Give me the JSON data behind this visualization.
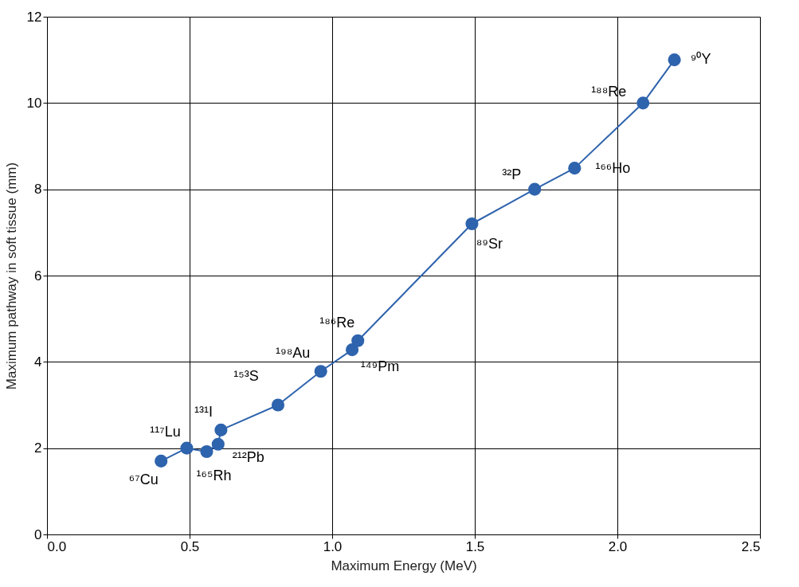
{
  "chart_data": {
    "type": "line",
    "xlabel": "Maximum Energy (MeV)",
    "ylabel": "Maximum pathway in soft tissue (mm)",
    "x": [
      0.4,
      0.49,
      0.56,
      0.6,
      0.61,
      0.81,
      0.96,
      1.07,
      1.09,
      1.49,
      1.71,
      1.85,
      2.09,
      2.2
    ],
    "series": [
      {
        "color": "#2e63ad",
        "values": [
          1.7,
          2.0,
          1.92,
          2.09,
          2.42,
          3.0,
          3.78,
          4.28,
          4.49,
          7.2,
          8.0,
          8.49,
          10.0,
          11.0
        ]
      }
    ],
    "xlim": [
      0,
      2.5
    ],
    "xticks": [
      {
        "value": 0,
        "label": "0.0"
      },
      0.5,
      {
        "value": 1,
        "label": "1.0"
      },
      1.5,
      {
        "value": 2,
        "label": "2.0"
      },
      2.5
    ],
    "ylim": [
      0,
      12
    ],
    "yticks": [
      0,
      2,
      4,
      6,
      8,
      10,
      12
    ],
    "grid": true,
    "marker": "circle",
    "line_style": "solid",
    "annotations": [
      {
        "text": "⁶⁷Cu",
        "x": 0.4,
        "y": 1.7
      },
      {
        "text": "¹¹⁷Lu",
        "x": 0.49,
        "y": 2.0
      },
      {
        "text": "¹⁶⁵Rh",
        "x": 0.56,
        "y": 1.92
      },
      {
        "text": "²¹²Pb",
        "x": 0.6,
        "y": 2.09
      },
      {
        "text": "¹³¹I",
        "x": 0.61,
        "y": 2.42
      },
      {
        "text": "¹⁵³S",
        "x": 0.81,
        "y": 3.0
      },
      {
        "text": "¹⁹⁸Au",
        "x": 0.96,
        "y": 3.78
      },
      {
        "text": "¹⁴⁹Pm",
        "x": 1.07,
        "y": 4.28
      },
      {
        "text": "¹⁸⁶Re",
        "x": 1.09,
        "y": 4.49
      },
      {
        "text": "⁸⁹Sr",
        "x": 1.49,
        "y": 7.2
      },
      {
        "text": "³²P",
        "x": 1.71,
        "y": 8.0
      },
      {
        "text": "¹⁶⁶Ho",
        "x": 1.85,
        "y": 8.49
      },
      {
        "text": "¹⁸⁸Re",
        "x": 2.09,
        "y": 10.0
      },
      {
        "text": "⁹⁰Y",
        "x": 2.2,
        "y": 11.0
      }
    ]
  }
}
